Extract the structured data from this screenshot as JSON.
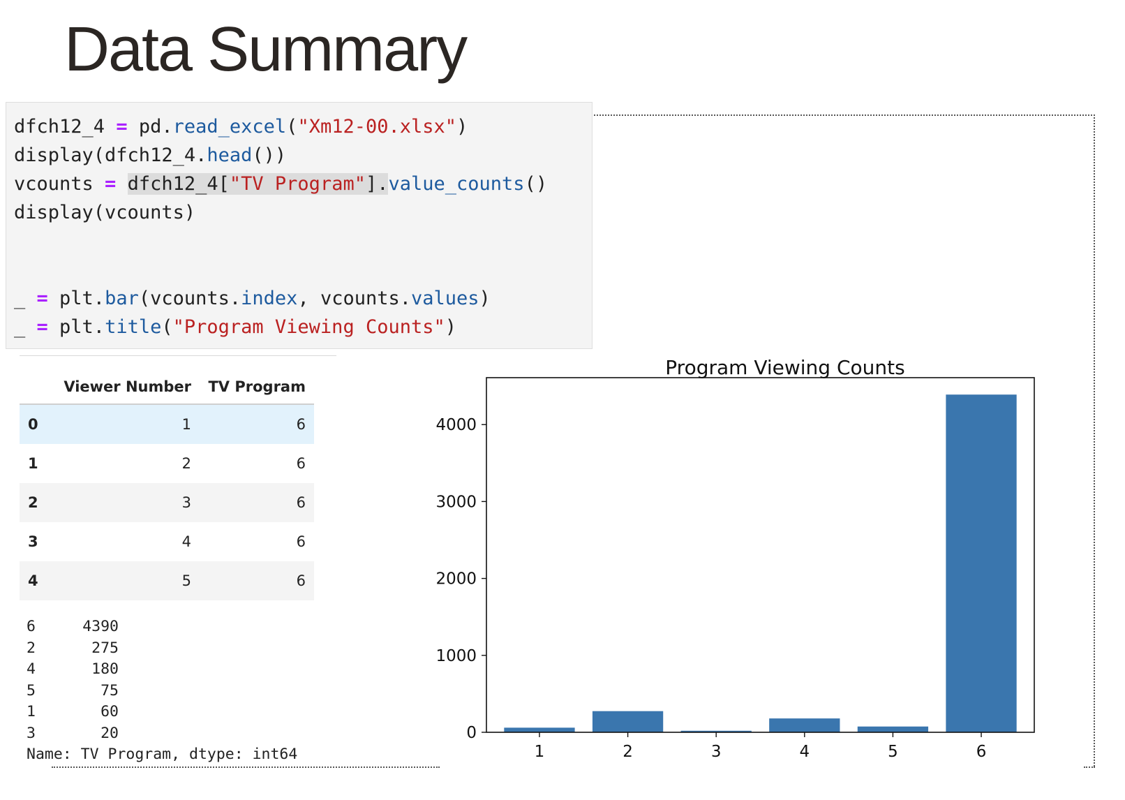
{
  "slide": {
    "title": "Data Summary"
  },
  "code_cell": {
    "lines": [
      [
        {
          "t": "dfch12_4 "
        },
        {
          "t": "=",
          "c": "op"
        },
        {
          "t": " pd."
        },
        {
          "t": "read_excel",
          "c": "fn"
        },
        {
          "t": "("
        },
        {
          "t": "\"Xm12-00.xlsx\"",
          "c": "str"
        },
        {
          "t": ")"
        }
      ],
      [
        {
          "t": "display(dfch12_4."
        },
        {
          "t": "head",
          "c": "fn"
        },
        {
          "t": "())"
        }
      ],
      [
        {
          "t": "vcounts "
        },
        {
          "t": "=",
          "c": "op"
        },
        {
          "t": " "
        },
        {
          "t": "dfch12_4[",
          "c": "hl"
        },
        {
          "t": "\"TV Program\"",
          "c": "hlstr"
        },
        {
          "t": "].",
          "c": "hl"
        },
        {
          "t": "value_counts",
          "c": "fn"
        },
        {
          "t": "()"
        }
      ],
      [
        {
          "t": "display(vcounts)"
        }
      ],
      [],
      [],
      [
        {
          "t": "_ "
        },
        {
          "t": "=",
          "c": "op"
        },
        {
          "t": " plt."
        },
        {
          "t": "bar",
          "c": "fn"
        },
        {
          "t": "(vcounts."
        },
        {
          "t": "index",
          "c": "fn"
        },
        {
          "t": ", vcounts."
        },
        {
          "t": "values",
          "c": "fn"
        },
        {
          "t": ")"
        }
      ],
      [
        {
          "t": "_ "
        },
        {
          "t": "=",
          "c": "op"
        },
        {
          "t": " plt."
        },
        {
          "t": "title",
          "c": "fn"
        },
        {
          "t": "("
        },
        {
          "t": "\"Program Viewing Counts\"",
          "c": "str"
        },
        {
          "t": ")"
        }
      ]
    ]
  },
  "dataframe": {
    "columns": [
      "Viewer Number",
      "TV Program"
    ],
    "rows": [
      {
        "index": "0",
        "values": [
          "1",
          "6"
        ]
      },
      {
        "index": "1",
        "values": [
          "2",
          "6"
        ]
      },
      {
        "index": "2",
        "values": [
          "3",
          "6"
        ]
      },
      {
        "index": "3",
        "values": [
          "4",
          "6"
        ]
      },
      {
        "index": "4",
        "values": [
          "5",
          "6"
        ]
      }
    ]
  },
  "value_counts": {
    "rows": [
      {
        "index": "6",
        "value": "4390"
      },
      {
        "index": "2",
        "value": "275"
      },
      {
        "index": "4",
        "value": "180"
      },
      {
        "index": "5",
        "value": "75"
      },
      {
        "index": "1",
        "value": "60"
      },
      {
        "index": "3",
        "value": "20"
      }
    ],
    "footer": "Name: TV Program, dtype: int64"
  },
  "colors": {
    "bar": "#3a76ae",
    "code_background": "#f4f4f4",
    "row_hover": "#e2f2fc"
  },
  "chart_data": {
    "type": "bar",
    "title": "Program Viewing Counts",
    "categories": [
      "1",
      "2",
      "3",
      "4",
      "5",
      "6"
    ],
    "values": [
      60,
      275,
      20,
      180,
      75,
      4390
    ],
    "yticks": [
      0,
      1000,
      2000,
      3000,
      4000
    ],
    "ylim": [
      0,
      4610
    ],
    "xlabel": "",
    "ylabel": "",
    "grid": false
  }
}
